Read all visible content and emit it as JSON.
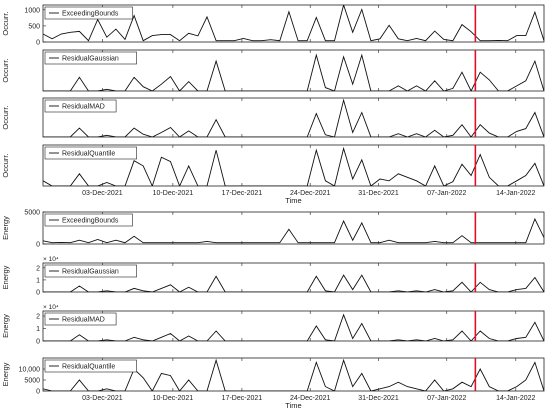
{
  "figure": {
    "x_ticks": [
      "03-Dec-2021",
      "10-Dec-2021",
      "17-Dec-2021",
      "24-Dec-2021",
      "31-Dec-2021",
      "07-Jan-2022",
      "14-Jan-2022"
    ],
    "time_label": "Time",
    "event_line_color": "#e0102a",
    "series_color": "#111111"
  },
  "chart_data": [
    {
      "type": "line",
      "group": "occurrences",
      "ylabel": "Occurr.",
      "legend": "ExceedingBounds",
      "legend_position": "top-left",
      "ylim": [
        0,
        1150
      ],
      "yticks": [
        0,
        500,
        1000
      ],
      "ytick_labels": [
        "0",
        "500",
        "1000"
      ],
      "exponent": "",
      "grid": false,
      "show_x_tick_labels": false,
      "values": [
        250,
        100,
        250,
        300,
        330,
        40,
        700,
        150,
        400,
        80,
        820,
        40,
        200,
        230,
        230,
        40,
        270,
        190,
        780,
        40,
        40,
        40,
        110,
        40,
        40,
        70,
        40,
        940,
        40,
        40,
        760,
        40,
        40,
        1150,
        300,
        1010,
        40,
        100,
        520,
        100,
        40,
        110,
        40,
        340,
        80,
        40,
        540,
        320,
        40,
        40,
        50,
        40,
        200,
        200,
        930,
        40
      ]
    },
    {
      "type": "line",
      "group": "occurrences",
      "ylabel": "Occurr.",
      "legend": "ResidualGaussian",
      "legend_position": "top-left",
      "ylim": [
        0,
        480
      ],
      "yticks": [],
      "ytick_labels": [],
      "exponent": "",
      "grid": false,
      "show_x_tick_labels": false,
      "values": [
        0,
        0,
        0,
        0,
        160,
        0,
        0,
        20,
        0,
        0,
        160,
        50,
        0,
        80,
        170,
        0,
        110,
        0,
        0,
        350,
        0,
        0,
        0,
        0,
        0,
        0,
        0,
        0,
        0,
        0,
        420,
        40,
        0,
        400,
        80,
        420,
        0,
        0,
        0,
        60,
        0,
        60,
        0,
        120,
        0,
        30,
        220,
        0,
        220,
        130,
        0,
        0,
        60,
        120,
        350,
        0
      ]
    },
    {
      "type": "line",
      "group": "occurrences",
      "ylabel": "Occurr.",
      "legend": "ResidualMAD",
      "legend_position": "top-left",
      "ylim": [
        0,
        700
      ],
      "yticks": [],
      "ytick_labels": [],
      "exponent": "",
      "grid": false,
      "show_x_tick_labels": false,
      "values": [
        0,
        0,
        0,
        0,
        160,
        0,
        0,
        30,
        0,
        0,
        160,
        50,
        0,
        80,
        170,
        0,
        110,
        0,
        0,
        310,
        0,
        0,
        0,
        0,
        0,
        0,
        0,
        0,
        0,
        0,
        420,
        40,
        0,
        660,
        80,
        440,
        0,
        0,
        0,
        60,
        0,
        60,
        0,
        120,
        0,
        30,
        220,
        0,
        220,
        70,
        0,
        0,
        100,
        150,
        440,
        0
      ]
    },
    {
      "type": "line",
      "group": "occurrences",
      "ylabel": "Occurr.",
      "legend": "ResidualQuantile",
      "legend_position": "top-left",
      "ylim": [
        0,
        470
      ],
      "yticks": [],
      "ytick_labels": [],
      "exponent": "",
      "grid": false,
      "show_x_tick_labels": true,
      "values": [
        60,
        0,
        0,
        0,
        140,
        0,
        0,
        40,
        0,
        0,
        290,
        230,
        0,
        330,
        280,
        0,
        230,
        0,
        0,
        410,
        0,
        0,
        0,
        0,
        0,
        0,
        0,
        0,
        0,
        0,
        410,
        60,
        0,
        430,
        80,
        300,
        0,
        80,
        60,
        140,
        100,
        60,
        0,
        230,
        0,
        50,
        250,
        120,
        360,
        100,
        0,
        0,
        60,
        120,
        260,
        0
      ]
    },
    {
      "type": "line",
      "group": "energy",
      "ylabel": "Energy",
      "legend": "ExceedingBounds",
      "legend_position": "top-left",
      "ylim": [
        0,
        5000
      ],
      "yticks": [
        0,
        5000
      ],
      "ytick_labels": [
        "0",
        "5000"
      ],
      "exponent": "",
      "grid": false,
      "show_x_tick_labels": false,
      "values": [
        500,
        200,
        250,
        200,
        600,
        200,
        700,
        200,
        600,
        200,
        1200,
        200,
        200,
        200,
        200,
        200,
        200,
        200,
        400,
        200,
        200,
        200,
        200,
        200,
        200,
        200,
        200,
        2300,
        200,
        200,
        200,
        200,
        200,
        3600,
        600,
        3300,
        200,
        200,
        600,
        200,
        200,
        200,
        200,
        400,
        200,
        200,
        1300,
        200,
        200,
        200,
        200,
        200,
        200,
        200,
        3900,
        1000
      ]
    },
    {
      "type": "line",
      "group": "energy",
      "ylabel": "Energy",
      "legend": "ResidualGaussian",
      "legend_position": "top-left",
      "ylim": [
        0,
        24000
      ],
      "yticks": [
        0,
        10000,
        20000
      ],
      "ytick_labels": [
        "0",
        "1",
        "2"
      ],
      "exponent": "× 10⁴",
      "grid": false,
      "show_x_tick_labels": false,
      "values": [
        0,
        0,
        0,
        0,
        5000,
        0,
        0,
        1000,
        0,
        0,
        3000,
        1000,
        0,
        3000,
        6000,
        0,
        4000,
        0,
        0,
        13000,
        0,
        0,
        0,
        0,
        0,
        0,
        0,
        0,
        0,
        0,
        13000,
        1000,
        0,
        14000,
        2000,
        14000,
        0,
        0,
        0,
        1000,
        0,
        1000,
        0,
        2000,
        0,
        1000,
        8000,
        0,
        8000,
        2000,
        0,
        0,
        2000,
        3000,
        12000,
        0
      ]
    },
    {
      "type": "line",
      "group": "energy",
      "ylabel": "Energy",
      "legend": "ResidualMAD",
      "legend_position": "top-left",
      "ylim": [
        0,
        24000
      ],
      "yticks": [
        0,
        10000,
        20000
      ],
      "ytick_labels": [
        "0",
        "1",
        "2"
      ],
      "exponent": "× 10⁴",
      "grid": false,
      "show_x_tick_labels": false,
      "values": [
        0,
        0,
        0,
        0,
        5000,
        0,
        0,
        1000,
        0,
        0,
        3000,
        1000,
        0,
        3000,
        6000,
        0,
        4000,
        0,
        0,
        8000,
        0,
        0,
        0,
        0,
        0,
        0,
        0,
        0,
        0,
        0,
        12000,
        1000,
        0,
        21000,
        2000,
        14000,
        0,
        0,
        0,
        1000,
        0,
        1000,
        0,
        2000,
        0,
        1000,
        8000,
        0,
        8000,
        2000,
        0,
        0,
        2000,
        3000,
        15000,
        0
      ]
    },
    {
      "type": "line",
      "group": "energy",
      "ylabel": "Energy",
      "legend": "ResidualQuantile",
      "legend_position": "top-left",
      "ylim": [
        0,
        15000
      ],
      "yticks": [
        0,
        5000,
        10000
      ],
      "ytick_labels": [
        "0",
        "5000",
        "10,000"
      ],
      "exponent": "",
      "grid": false,
      "show_x_tick_labels": true,
      "values": [
        1000,
        0,
        0,
        0,
        5000,
        0,
        0,
        1000,
        0,
        0,
        10000,
        6000,
        0,
        8000,
        7000,
        0,
        5000,
        0,
        0,
        14000,
        0,
        0,
        0,
        0,
        0,
        0,
        0,
        0,
        0,
        0,
        13000,
        2000,
        0,
        14000,
        2000,
        8000,
        0,
        1000,
        2000,
        4000,
        2000,
        1000,
        0,
        5000,
        0,
        1000,
        4000,
        2000,
        10000,
        2000,
        0,
        0,
        2000,
        5000,
        13000,
        0
      ]
    }
  ]
}
